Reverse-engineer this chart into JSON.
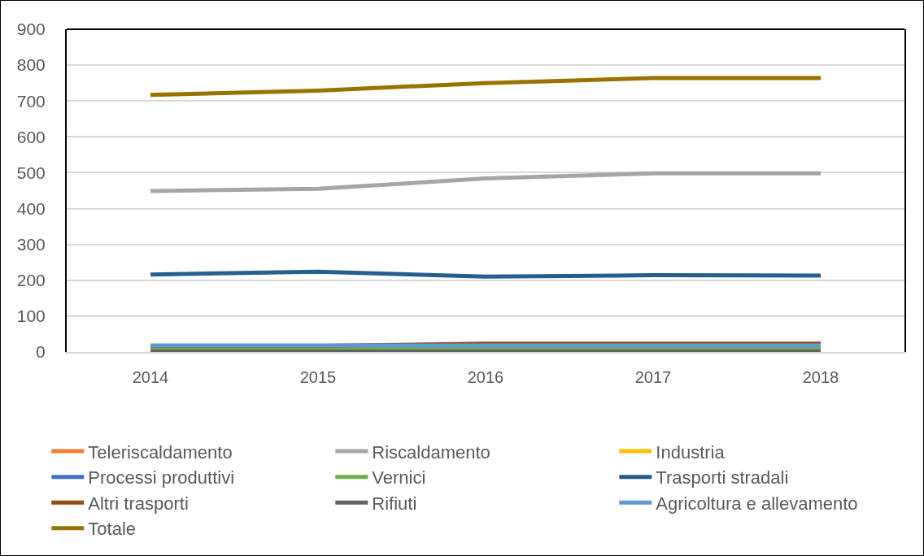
{
  "chart_data": {
    "type": "line",
    "categories": [
      "2014",
      "2015",
      "2016",
      "2017",
      "2018"
    ],
    "series": [
      {
        "name": "Teleriscaldamento",
        "color": "#ed7d31",
        "values": [
          null,
          null,
          null,
          null,
          null
        ]
      },
      {
        "name": "Riscaldamento",
        "color": "#a5a5a5",
        "values": [
          449,
          455,
          484,
          498,
          498
        ]
      },
      {
        "name": "Industria",
        "color": "#ffc000",
        "values": [
          null,
          null,
          null,
          null,
          null
        ]
      },
      {
        "name": "Processi produttivi",
        "color": "#4472c4",
        "values": [
          null,
          null,
          null,
          null,
          null
        ]
      },
      {
        "name": "Vernici",
        "color": "#70ad47",
        "values": [
          9,
          9,
          9,
          9,
          9
        ]
      },
      {
        "name": "Trasporti stradali",
        "color": "#255e91",
        "values": [
          216,
          224,
          210,
          214,
          213
        ]
      },
      {
        "name": "Altri trasporti",
        "color": "#9e480e",
        "values": [
          17,
          17,
          23,
          23,
          23
        ]
      },
      {
        "name": "Rifiuti",
        "color": "#636363",
        "values": [
          1,
          1,
          1,
          1,
          1
        ]
      },
      {
        "name": "Agricoltura e allevamento",
        "color": "#5b9bd5",
        "values": [
          18,
          18,
          18,
          18,
          18
        ]
      },
      {
        "name": "Totale",
        "color": "#997300",
        "values": [
          717,
          729,
          750,
          764,
          764
        ]
      }
    ],
    "ylim": [
      0,
      900
    ],
    "yticks": [
      0,
      100,
      200,
      300,
      400,
      500,
      600,
      700,
      800,
      900
    ],
    "grid": "y",
    "legend": "bottom",
    "marker": "none",
    "line_style": "solid"
  }
}
